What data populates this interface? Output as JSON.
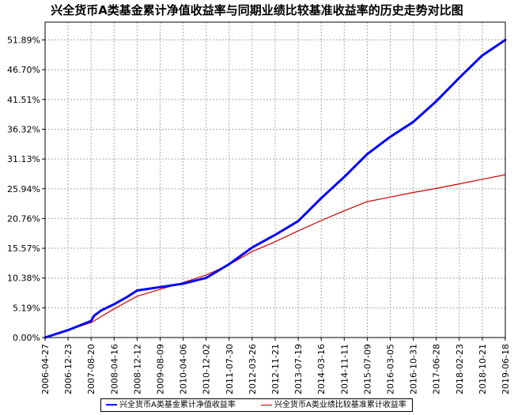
{
  "chart_data": {
    "type": "line",
    "title": "兴全货币A类基金累计净值收益率与同期业绩比较基准收益率的历史走势对比图",
    "x_tick_labels": [
      "2006-04-27",
      "2006-12-23",
      "2007-08-20",
      "2008-04-16",
      "2008-12-12",
      "2009-08-09",
      "2010-04-06",
      "2010-12-02",
      "2011-07-30",
      "2012-03-26",
      "2012-11-21",
      "2013-07-19",
      "2014-03-16",
      "2014-11-11",
      "2015-07-09",
      "2016-03-05",
      "2016-10-31",
      "2017-06-28",
      "2018-02-23",
      "2018-10-21",
      "2019-06-18"
    ],
    "y_tick_labels": [
      "0.00%",
      "5.19%",
      "10.38%",
      "15.57%",
      "20.76%",
      "25.94%",
      "31.13%",
      "36.32%",
      "41.51%",
      "46.70%",
      "51.89%"
    ],
    "ylim": [
      0,
      55
    ],
    "grid": "dashed",
    "legend_position": "bottom",
    "series": [
      {
        "name": "兴全货币A类基金累计净值收益率",
        "color": "#0000ff",
        "points": [
          [
            "2006-04-27",
            0.0
          ],
          [
            "2006-12-23",
            1.3
          ],
          [
            "2007-08-20",
            2.9
          ],
          [
            "2007-09-20",
            3.8
          ],
          [
            "2007-12-01",
            4.7
          ],
          [
            "2008-04-16",
            5.8
          ],
          [
            "2008-09-01",
            7.1
          ],
          [
            "2008-12-12",
            8.2
          ],
          [
            "2009-08-09",
            8.8
          ],
          [
            "2010-04-06",
            9.4
          ],
          [
            "2010-12-02",
            10.4
          ],
          [
            "2011-07-30",
            12.8
          ],
          [
            "2012-03-26",
            15.7
          ],
          [
            "2012-11-21",
            17.9
          ],
          [
            "2013-07-19",
            20.3
          ],
          [
            "2014-03-16",
            24.3
          ],
          [
            "2014-11-11",
            28.0
          ],
          [
            "2015-07-09",
            32.0
          ],
          [
            "2016-03-05",
            35.0
          ],
          [
            "2016-10-31",
            37.6
          ],
          [
            "2017-06-28",
            41.2
          ],
          [
            "2018-02-23",
            45.3
          ],
          [
            "2018-10-21",
            49.2
          ],
          [
            "2019-06-18",
            51.9
          ]
        ]
      },
      {
        "name": "兴全货币A类业绩比较基准累计收益率",
        "color": "#cc0000",
        "points": [
          [
            "2006-04-27",
            0.0
          ],
          [
            "2006-12-23",
            1.3
          ],
          [
            "2007-08-20",
            2.6
          ],
          [
            "2008-04-16",
            5.0
          ],
          [
            "2008-12-12",
            7.2
          ],
          [
            "2009-08-09",
            8.4
          ],
          [
            "2010-04-06",
            9.6
          ],
          [
            "2010-12-02",
            10.9
          ],
          [
            "2011-07-30",
            12.7
          ],
          [
            "2012-03-26",
            15.0
          ],
          [
            "2012-11-21",
            16.7
          ],
          [
            "2013-07-19",
            18.6
          ],
          [
            "2014-03-16",
            20.4
          ],
          [
            "2014-11-11",
            22.1
          ],
          [
            "2015-07-09",
            23.7
          ],
          [
            "2016-03-05",
            24.5
          ],
          [
            "2016-10-31",
            25.3
          ],
          [
            "2017-06-28",
            26.0
          ],
          [
            "2018-02-23",
            26.8
          ],
          [
            "2018-10-21",
            27.6
          ],
          [
            "2019-06-18",
            28.4
          ]
        ]
      }
    ]
  }
}
